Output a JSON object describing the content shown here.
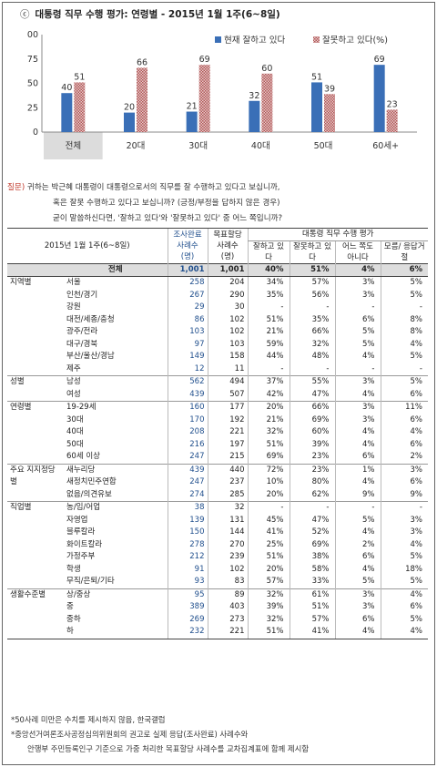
{
  "title_mark": "ⓒ",
  "title": "대통령 직무 수행 평가: 연령별 - 2015년 1월 1주(6~8일)",
  "colors": {
    "positive": "#3a6fb7",
    "negative": "#b05757",
    "total_bg": "#dcdcdc"
  },
  "chart_data": {
    "type": "bar",
    "categories": [
      "전체",
      "20대",
      "30대",
      "40대",
      "50대",
      "60세+"
    ],
    "series": [
      {
        "name": "현재 잘하고 있다",
        "values": [
          40,
          20,
          21,
          32,
          51,
          69
        ]
      },
      {
        "name": "잘못하고 있다(%)",
        "values": [
          51,
          66,
          69,
          60,
          39,
          23
        ]
      }
    ],
    "yticks": [
      "0",
      "25",
      "50",
      "75",
      "100"
    ],
    "ylim": [
      0,
      100
    ],
    "legend_position": "top-right",
    "highlighted_category": "전체"
  },
  "question": {
    "label": "질문)",
    "line1": "귀하는 박근혜 대통령이 대통령으로서의 직무를 잘 수행하고 있다고 보십니까,",
    "line2": "혹은 잘못 수행하고 있다고 보십니까? (긍정/부정을 답하지 않은 경우)",
    "line3": "굳이 말씀하신다면, '잘하고 있다'와 '잘못하고 있다' 중 어느 쪽입니까?"
  },
  "table": {
    "header": {
      "period": "2015년 1월 1주(6~8일)",
      "sample_done": "조사완료 사례수 (명)",
      "sample_target": "목표할당 사례수 (명)",
      "eval_group": "대통령 직무 수행 평가",
      "cols": [
        "잘하고 있다",
        "잘못하고 있다",
        "어느 쪽도 아니다",
        "모름/ 응답거절"
      ]
    },
    "total": {
      "label": "전체",
      "n1": "1,001",
      "n2": "1,001",
      "v": [
        "40%",
        "51%",
        "4%",
        "6%"
      ]
    },
    "groups": [
      {
        "name": "지역별",
        "rows": [
          {
            "label": "서울",
            "n1": "258",
            "n2": "204",
            "v": [
              "34%",
              "57%",
              "3%",
              "5%"
            ]
          },
          {
            "label": "인천/경기",
            "n1": "267",
            "n2": "290",
            "v": [
              "35%",
              "56%",
              "3%",
              "5%"
            ]
          },
          {
            "label": "강원",
            "n1": "29",
            "n2": "30",
            "v": [
              "-",
              "-",
              "-",
              "-"
            ]
          },
          {
            "label": "대전/세종/충청",
            "n1": "86",
            "n2": "102",
            "v": [
              "51%",
              "35%",
              "6%",
              "8%"
            ]
          },
          {
            "label": "광주/전라",
            "n1": "103",
            "n2": "102",
            "v": [
              "21%",
              "66%",
              "5%",
              "8%"
            ]
          },
          {
            "label": "대구/경북",
            "n1": "97",
            "n2": "103",
            "v": [
              "59%",
              "32%",
              "5%",
              "4%"
            ]
          },
          {
            "label": "부산/울산/경남",
            "n1": "149",
            "n2": "158",
            "v": [
              "44%",
              "48%",
              "4%",
              "5%"
            ]
          },
          {
            "label": "제주",
            "n1": "12",
            "n2": "11",
            "v": [
              "-",
              "-",
              "-",
              "-"
            ]
          }
        ]
      },
      {
        "name": "성별",
        "rows": [
          {
            "label": "남성",
            "n1": "562",
            "n2": "494",
            "v": [
              "37%",
              "55%",
              "3%",
              "5%"
            ]
          },
          {
            "label": "여성",
            "n1": "439",
            "n2": "507",
            "v": [
              "42%",
              "47%",
              "4%",
              "6%"
            ]
          }
        ]
      },
      {
        "name": "연령별",
        "rows": [
          {
            "label": "19-29세",
            "n1": "160",
            "n2": "177",
            "v": [
              "20%",
              "66%",
              "3%",
              "11%"
            ]
          },
          {
            "label": "30대",
            "n1": "170",
            "n2": "192",
            "v": [
              "21%",
              "69%",
              "3%",
              "6%"
            ]
          },
          {
            "label": "40대",
            "n1": "208",
            "n2": "221",
            "v": [
              "32%",
              "60%",
              "4%",
              "4%"
            ]
          },
          {
            "label": "50대",
            "n1": "216",
            "n2": "197",
            "v": [
              "51%",
              "39%",
              "4%",
              "6%"
            ]
          },
          {
            "label": "60세 이상",
            "n1": "247",
            "n2": "215",
            "v": [
              "69%",
              "23%",
              "6%",
              "2%"
            ]
          }
        ]
      },
      {
        "name": "주요 지지정당별",
        "rows": [
          {
            "label": "새누리당",
            "n1": "439",
            "n2": "440",
            "v": [
              "72%",
              "23%",
              "1%",
              "3%"
            ]
          },
          {
            "label": "새정치민주연합",
            "n1": "247",
            "n2": "237",
            "v": [
              "10%",
              "80%",
              "4%",
              "6%"
            ]
          },
          {
            "label": "없음/의견유보",
            "n1": "274",
            "n2": "285",
            "v": [
              "20%",
              "62%",
              "9%",
              "9%"
            ]
          }
        ]
      },
      {
        "name": "직업별",
        "rows": [
          {
            "label": "농/임/어업",
            "n1": "38",
            "n2": "32",
            "v": [
              "-",
              "-",
              "-",
              "-"
            ]
          },
          {
            "label": "자영업",
            "n1": "139",
            "n2": "131",
            "v": [
              "45%",
              "47%",
              "5%",
              "3%"
            ]
          },
          {
            "label": "블루칼라",
            "n1": "150",
            "n2": "144",
            "v": [
              "41%",
              "52%",
              "4%",
              "3%"
            ]
          },
          {
            "label": "화이트칼라",
            "n1": "278",
            "n2": "270",
            "v": [
              "25%",
              "69%",
              "2%",
              "4%"
            ]
          },
          {
            "label": "가정주부",
            "n1": "212",
            "n2": "239",
            "v": [
              "51%",
              "38%",
              "6%",
              "5%"
            ]
          },
          {
            "label": "학생",
            "n1": "91",
            "n2": "102",
            "v": [
              "20%",
              "58%",
              "4%",
              "18%"
            ]
          },
          {
            "label": "무직/은퇴/기타",
            "n1": "93",
            "n2": "83",
            "v": [
              "57%",
              "33%",
              "5%",
              "5%"
            ]
          }
        ]
      },
      {
        "name": "생활수준별",
        "rows": [
          {
            "label": "상/중상",
            "n1": "95",
            "n2": "89",
            "v": [
              "32%",
              "61%",
              "3%",
              "4%"
            ]
          },
          {
            "label": "중",
            "n1": "389",
            "n2": "403",
            "v": [
              "39%",
              "51%",
              "3%",
              "6%"
            ]
          },
          {
            "label": "중하",
            "n1": "269",
            "n2": "273",
            "v": [
              "32%",
              "57%",
              "6%",
              "5%"
            ]
          },
          {
            "label": "하",
            "n1": "232",
            "n2": "221",
            "v": [
              "51%",
              "41%",
              "4%",
              "4%"
            ]
          }
        ]
      }
    ]
  },
  "notes": [
    "*50사례 미만은 수치를 제시하지 않음, 한국갤럽",
    "*중앙선거여론조사공정심의위원회의 권고로 실제 응답(조사완료) 사례수와",
    "안행부 주민등록인구 기준으로 가중 처리한 목표할당 사례수를 교차집계표에 함께 제시함"
  ]
}
